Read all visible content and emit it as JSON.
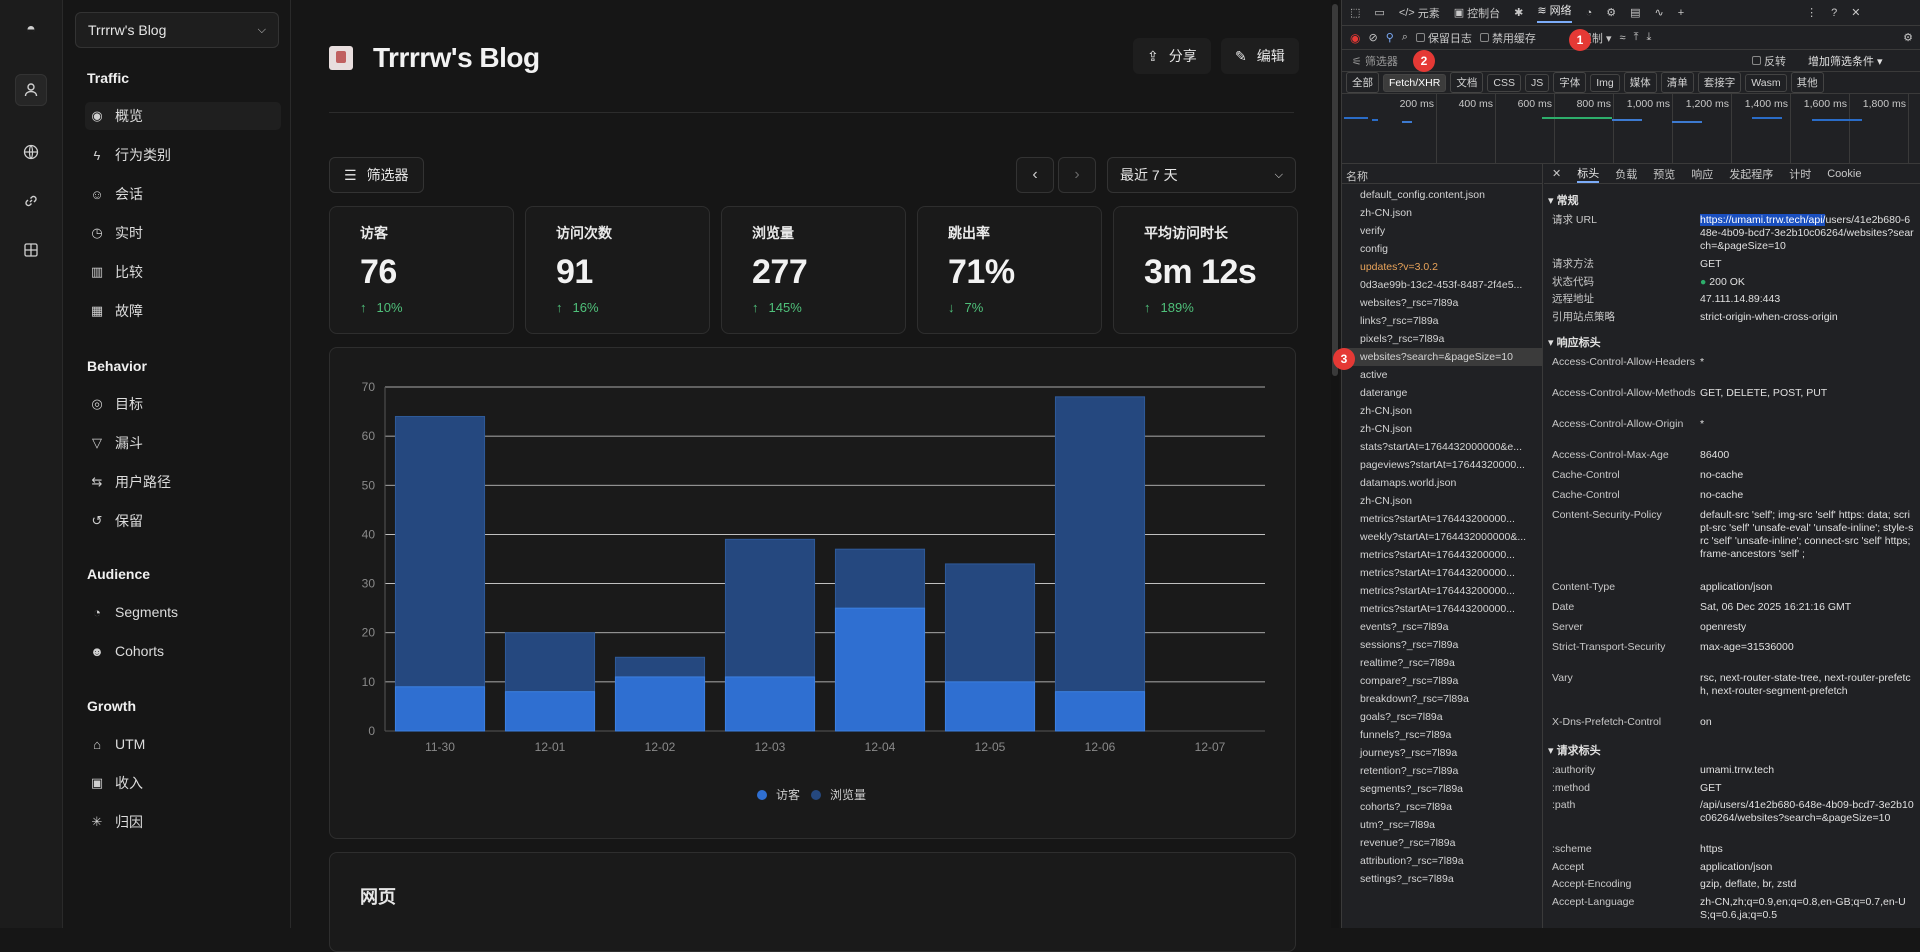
{
  "rail": {
    "icons": [
      "logo-icon",
      "user-icon",
      "globe-icon",
      "link-icon",
      "grid-icon"
    ]
  },
  "site_selector": {
    "label": "Trrrrw's Blog"
  },
  "sidebar": {
    "sections": [
      {
        "title": "Traffic",
        "items": [
          "概览",
          "行为类别",
          "会话",
          "实时",
          "比较",
          "故障"
        ]
      },
      {
        "title": "Behavior",
        "items": [
          "目标",
          "漏斗",
          "用户路径",
          "保留"
        ]
      },
      {
        "title": "Audience",
        "items": [
          "Segments",
          "Cohorts"
        ]
      },
      {
        "title": "Growth",
        "items": [
          "UTM",
          "收入",
          "归因"
        ]
      }
    ]
  },
  "header": {
    "title": "Trrrrw's Blog",
    "share": "分享",
    "edit": "编辑"
  },
  "toolbar": {
    "filter": "筛选器",
    "range": "最近 7 天"
  },
  "stats": [
    {
      "label": "访客",
      "value": "76",
      "change": "10%",
      "dir": "up"
    },
    {
      "label": "访问次数",
      "value": "91",
      "change": "16%",
      "dir": "up"
    },
    {
      "label": "浏览量",
      "value": "277",
      "change": "145%",
      "dir": "up"
    },
    {
      "label": "跳出率",
      "value": "71%",
      "change": "7%",
      "dir": "down"
    },
    {
      "label": "平均访问时长",
      "value": "3m 12s",
      "change": "189%",
      "dir": "up"
    }
  ],
  "chart_data": {
    "type": "bar",
    "categories": [
      "11-30",
      "12-01",
      "12-02",
      "12-03",
      "12-04",
      "12-05",
      "12-06",
      "12-07"
    ],
    "series": [
      {
        "name": "访客",
        "values": [
          9,
          8,
          11,
          11,
          25,
          10,
          8,
          0
        ]
      },
      {
        "name": "浏览量",
        "values": [
          64,
          20,
          15,
          39,
          37,
          34,
          68,
          0
        ]
      }
    ],
    "ylim": [
      0,
      70
    ],
    "yticks": [
      0,
      10,
      20,
      30,
      40,
      50,
      60,
      70
    ],
    "legend_position": "bottom",
    "grid": true,
    "colors": {
      "visitors": "#2f6fd1",
      "views": "#25487f"
    }
  },
  "pages_card": {
    "title": "网页"
  },
  "devtools": {
    "tabs": [
      "元素",
      "控制台",
      "网络"
    ],
    "toolbar": {
      "preserve_log": "保留日志",
      "disable_cache": "禁用缓存",
      "throttle": "无限制"
    },
    "filter_placeholder": "筛选器",
    "invert": "反转",
    "more_filters": "增加筛选条件 ▾",
    "type_filters": [
      "全部",
      "Fetch/XHR",
      "文档",
      "CSS",
      "JS",
      "字体",
      "Img",
      "媒体",
      "清单",
      "套接字",
      "Wasm",
      "其他"
    ],
    "timeline_labels": [
      "200 ms",
      "400 ms",
      "600 ms",
      "800 ms",
      "1,000 ms",
      "1,200 ms",
      "1,400 ms",
      "1,600 ms",
      "1,800 ms",
      "2,000 r"
    ],
    "name_header": "名称",
    "requests": [
      "default_config.content.json",
      "zh-CN.json",
      "verify",
      "config",
      "updates?v=3.0.2",
      "0d3ae99b-13c2-453f-8487-2f4e5...",
      "websites?_rsc=7l89a",
      "links?_rsc=7l89a",
      "pixels?_rsc=7l89a",
      "websites?search=&pageSize=10",
      "active",
      "daterange",
      "zh-CN.json",
      "zh-CN.json",
      "stats?startAt=1764432000000&e...",
      "pageviews?startAt=17644320000...",
      "datamaps.world.json",
      "zh-CN.json",
      "metrics?startAt=176443200000...",
      "weekly?startAt=1764432000000&...",
      "metrics?startAt=176443200000...",
      "metrics?startAt=176443200000...",
      "metrics?startAt=176443200000...",
      "metrics?startAt=176443200000...",
      "events?_rsc=7l89a",
      "sessions?_rsc=7l89a",
      "realtime?_rsc=7l89a",
      "compare?_rsc=7l89a",
      "breakdown?_rsc=7l89a",
      "goals?_rsc=7l89a",
      "funnels?_rsc=7l89a",
      "journeys?_rsc=7l89a",
      "retention?_rsc=7l89a",
      "segments?_rsc=7l89a",
      "cohorts?_rsc=7l89a",
      "utm?_rsc=7l89a",
      "revenue?_rsc=7l89a",
      "attribution?_rsc=7l89a",
      "settings?_rsc=7l89a"
    ],
    "detail_tabs": [
      "标头",
      "负载",
      "预览",
      "响应",
      "发起程序",
      "计时",
      "Cookie"
    ],
    "general": {
      "title": "▾ 常规",
      "rows": [
        {
          "k": "请求 URL",
          "v1": "https://umami.trrw.tech/api/",
          "v2": "users/41e2b680-648e-4b09-bcd7-3e2b10c06264/websites?search=&pageSize=10"
        },
        {
          "k": "请求方法",
          "v": "GET"
        },
        {
          "k": "状态代码",
          "v": "200 OK"
        },
        {
          "k": "远程地址",
          "v": "47.111.14.89:443"
        },
        {
          "k": "引用站点策略",
          "v": "strict-origin-when-cross-origin"
        }
      ]
    },
    "response_headers": {
      "title": "▾ 响应标头",
      "rows": [
        {
          "k": "Access-Control-Allow-Headers",
          "v": "*"
        },
        {
          "k": "Access-Control-Allow-Methods",
          "v": "GET, DELETE, POST, PUT"
        },
        {
          "k": "Access-Control-Allow-Origin",
          "v": "*"
        },
        {
          "k": "Access-Control-Max-Age",
          "v": "86400"
        },
        {
          "k": "Cache-Control",
          "v": "no-cache"
        },
        {
          "k": "Cache-Control",
          "v": "no-cache"
        },
        {
          "k": "Content-Security-Policy",
          "v": "default-src 'self'; img-src 'self' https: data; script-src 'self' 'unsafe-eval' 'unsafe-inline'; style-src 'self' 'unsafe-inline'; connect-src 'self' https; frame-ancestors 'self' ;"
        },
        {
          "k": "Content-Type",
          "v": "application/json"
        },
        {
          "k": "Date",
          "v": "Sat, 06 Dec 2025 16:21:16 GMT"
        },
        {
          "k": "Server",
          "v": "openresty"
        },
        {
          "k": "Strict-Transport-Security",
          "v": "max-age=31536000"
        },
        {
          "k": "Vary",
          "v": "rsc, next-router-state-tree, next-router-prefetch, next-router-segment-prefetch"
        },
        {
          "k": "X-Dns-Prefetch-Control",
          "v": "on"
        }
      ]
    },
    "request_headers": {
      "title": "▾ 请求标头",
      "rows": [
        {
          "k": ":authority",
          "v": "umami.trrw.tech"
        },
        {
          "k": ":method",
          "v": "GET"
        },
        {
          "k": ":path",
          "v": "/api/users/41e2b680-648e-4b09-bcd7-3e2b10c06264/websites?search=&pageSize=10"
        },
        {
          "k": ":scheme",
          "v": "https"
        },
        {
          "k": "Accept",
          "v": "application/json"
        },
        {
          "k": "Accept-Encoding",
          "v": "gzip, deflate, br, zstd"
        },
        {
          "k": "Accept-Language",
          "v": "zh-CN,zh;q=0.9,en;q=0.8,en-GB;q=0.7,en-US;q=0.6,ja;q=0.5"
        }
      ]
    },
    "annotations": [
      "1",
      "2",
      "3"
    ]
  }
}
